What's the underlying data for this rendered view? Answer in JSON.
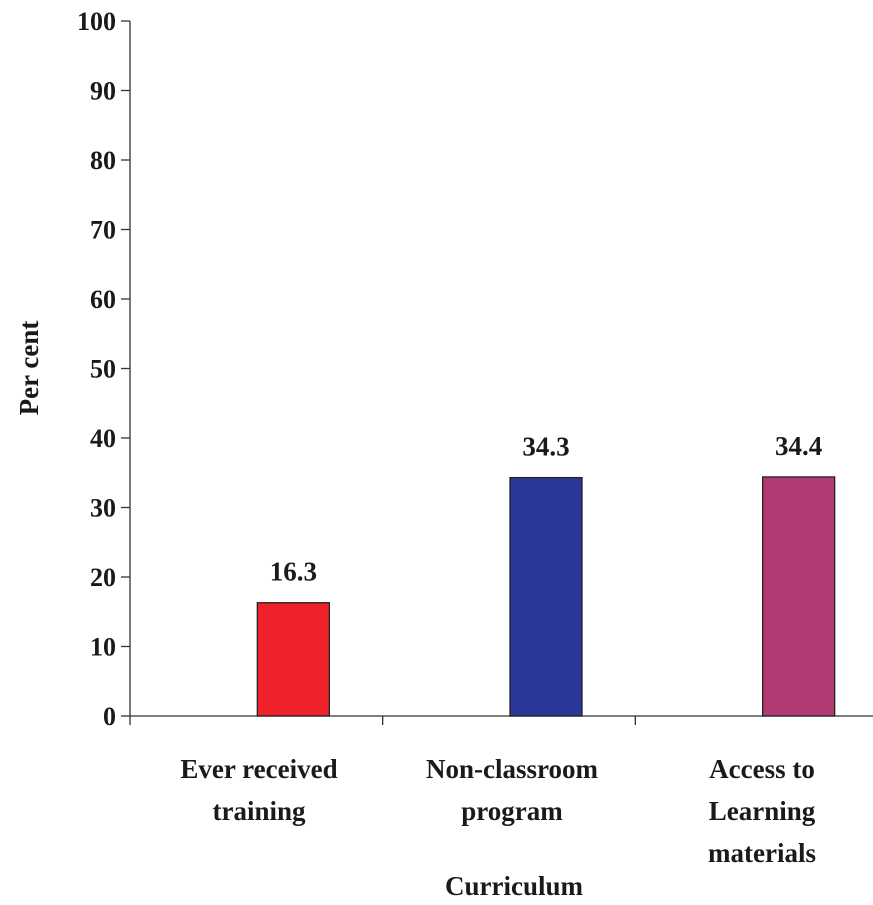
{
  "chart_data": {
    "type": "bar",
    "categories": [
      [
        "Ever received",
        "training"
      ],
      [
        "Non-classroom",
        "program"
      ],
      [
        "Access to",
        "Learning",
        "materials"
      ]
    ],
    "values": [
      16.3,
      34.3,
      34.4
    ],
    "data_labels": [
      "16.3",
      "34.3",
      "34.4"
    ],
    "colors": [
      "#ee222b",
      "#2c3897",
      "#b23a74"
    ],
    "ylabel": "Per cent",
    "xlabel": "Curriculum",
    "ylim": [
      0,
      100
    ],
    "yticks": [
      "0",
      "10",
      "20",
      "30",
      "40",
      "50",
      "60",
      "70",
      "80",
      "90",
      "100"
    ],
    "grid": false
  }
}
